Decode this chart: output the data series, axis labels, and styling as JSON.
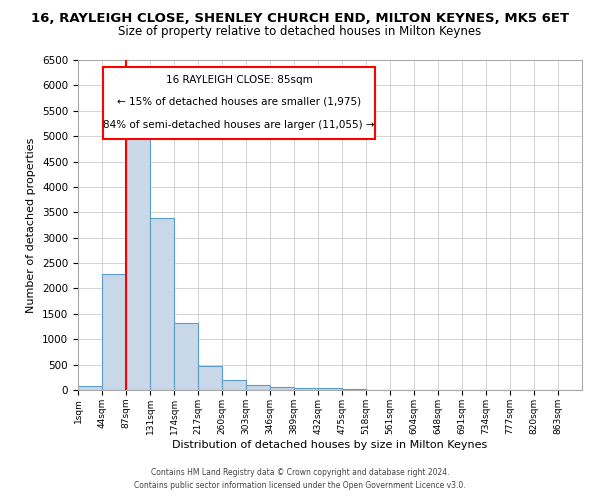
{
  "title": "16, RAYLEIGH CLOSE, SHENLEY CHURCH END, MILTON KEYNES, MK5 6ET",
  "subtitle": "Size of property relative to detached houses in Milton Keynes",
  "xlabel": "Distribution of detached houses by size in Milton Keynes",
  "ylabel": "Number of detached properties",
  "bin_labels": [
    "1sqm",
    "44sqm",
    "87sqm",
    "131sqm",
    "174sqm",
    "217sqm",
    "260sqm",
    "303sqm",
    "346sqm",
    "389sqm",
    "432sqm",
    "475sqm",
    "518sqm",
    "561sqm",
    "604sqm",
    "648sqm",
    "691sqm",
    "734sqm",
    "777sqm",
    "820sqm",
    "863sqm"
  ],
  "bin_values": [
    75,
    2280,
    5450,
    3380,
    1310,
    480,
    200,
    105,
    55,
    40,
    30,
    20,
    0,
    0,
    0,
    0,
    0,
    0,
    0,
    0,
    0
  ],
  "bar_color": "#c8d8e8",
  "bar_edge_color": "#5a9fc8",
  "property_line_color": "red",
  "annotation_title": "16 RAYLEIGH CLOSE: 85sqm",
  "annotation_line1": "← 15% of detached houses are smaller (1,975)",
  "annotation_line2": "84% of semi-detached houses are larger (11,055) →",
  "ylim": [
    0,
    6500
  ],
  "yticks": [
    0,
    500,
    1000,
    1500,
    2000,
    2500,
    3000,
    3500,
    4000,
    4500,
    5000,
    5500,
    6000,
    6500
  ],
  "footer1": "Contains HM Land Registry data © Crown copyright and database right 2024.",
  "footer2": "Contains public sector information licensed under the Open Government Licence v3.0.",
  "title_fontsize": 9.5,
  "subtitle_fontsize": 8.5,
  "figsize": [
    6.0,
    5.0
  ],
  "dpi": 100
}
